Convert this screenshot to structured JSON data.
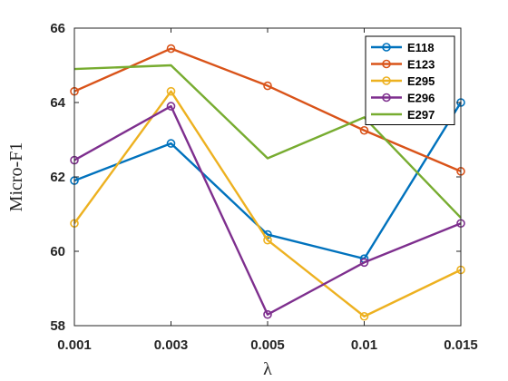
{
  "chart_data": {
    "type": "line",
    "xlabel": "λ",
    "ylabel": "Micro-F1",
    "categories": [
      "0.001",
      "0.003",
      "0.005",
      "0.01",
      "0.015"
    ],
    "ylim": [
      58,
      66
    ],
    "yticks": [
      "58",
      "60",
      "62",
      "64",
      "66"
    ],
    "grid": false,
    "legend_position": "top-right",
    "series": [
      {
        "name": "E118",
        "color": "#0072BD",
        "marker": "circle",
        "values": [
          61.9,
          62.9,
          60.45,
          59.8,
          64.0
        ]
      },
      {
        "name": "E123",
        "color": "#D95319",
        "marker": "circle",
        "values": [
          64.3,
          65.45,
          64.45,
          63.25,
          62.15
        ]
      },
      {
        "name": "E295",
        "color": "#EDB120",
        "marker": "circle",
        "values": [
          60.75,
          64.3,
          60.3,
          58.25,
          59.5
        ]
      },
      {
        "name": "E296",
        "color": "#7E2F8E",
        "marker": "circle",
        "values": [
          62.45,
          63.9,
          58.3,
          59.7,
          60.75
        ]
      },
      {
        "name": "E297",
        "color": "#77AC30",
        "marker": "none",
        "values": [
          64.9,
          65.0,
          62.5,
          63.6,
          60.9
        ]
      }
    ]
  }
}
